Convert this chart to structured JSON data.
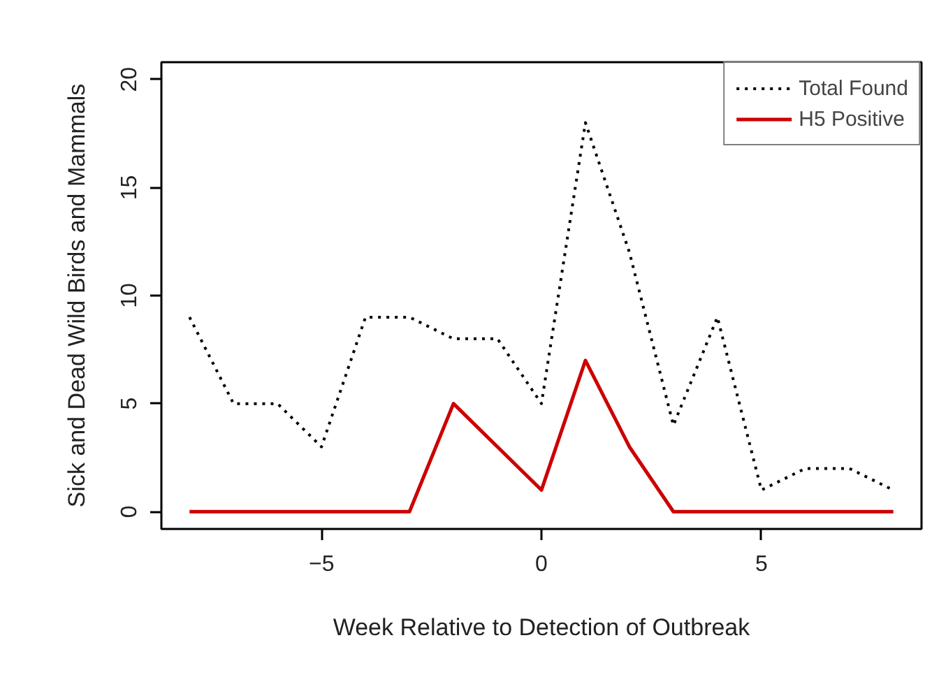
{
  "chart_data": {
    "type": "line",
    "xlabel": "Week Relative to Detection of Outbreak",
    "ylabel": "Sick and Dead Wild Birds and Mammals",
    "x": [
      -8,
      -7,
      -6,
      -5,
      -4,
      -3,
      -2,
      -1,
      0,
      1,
      2,
      3,
      4,
      5,
      6,
      7,
      8
    ],
    "series": [
      {
        "name": "Total Found",
        "color": "#000000",
        "line_style": "dotted",
        "values": [
          9,
          5,
          5,
          3,
          9,
          9,
          8,
          8,
          5,
          18,
          12,
          4,
          9,
          1,
          2,
          2,
          1
        ]
      },
      {
        "name": "H5 Positive",
        "color": "#cc0000",
        "line_style": "solid",
        "values": [
          0,
          0,
          0,
          0,
          0,
          0,
          5,
          3,
          1,
          7,
          3,
          0,
          0,
          0,
          0,
          0,
          0
        ]
      }
    ],
    "xlim": [
      -8.64,
      8.64
    ],
    "ylim": [
      -0.8,
      20.8
    ],
    "xticks": [
      -5,
      0,
      5
    ],
    "yticks": [
      0,
      5,
      10,
      15,
      20
    ],
    "grid": false,
    "legend": "top right"
  }
}
